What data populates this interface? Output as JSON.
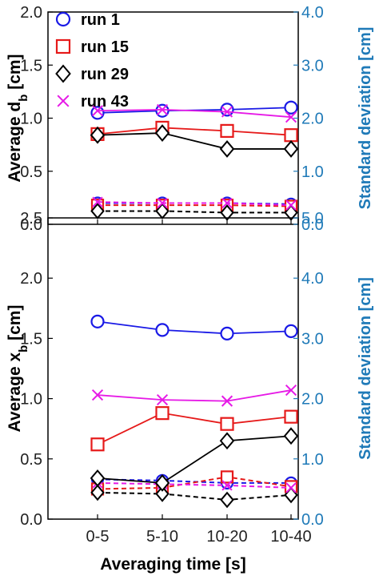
{
  "colors": {
    "run1": "#1a1ae6",
    "run15": "#e61a1a",
    "run29": "#000000",
    "run43": "#e61ae6",
    "right_axis": "#1f7ab8"
  },
  "chart_data": [
    {
      "type": "line",
      "panel": "top",
      "categories": [
        "0-5",
        "5-10",
        "10-20",
        "10-40"
      ],
      "xlabel": "",
      "ylabel": "Average d",
      "ylabel_sub": "b",
      "ylabel_unit": " [cm]",
      "ylim": [
        0,
        2.0
      ],
      "yticks": [
        "0.0",
        "0.5",
        "1.0",
        "1.5",
        "2.0"
      ],
      "ytick_values": [
        0,
        0.5,
        1.0,
        1.5,
        2.0
      ],
      "y2label": "Standard deviation [cm]",
      "y2lim": [
        0,
        4.0
      ],
      "y2ticks": [
        "0.0",
        "1.0",
        "2.0",
        "3.0",
        "4.0"
      ],
      "y2tick_values": [
        0,
        1.0,
        2.0,
        3.0,
        4.0
      ],
      "legend": "top-left",
      "series": [
        {
          "name": "run 1",
          "key": "run1",
          "marker": "circle",
          "values": [
            1.05,
            1.07,
            1.08,
            1.1
          ]
        },
        {
          "name": "run 15",
          "key": "run15",
          "marker": "square",
          "values": [
            0.85,
            0.91,
            0.88,
            0.84
          ]
        },
        {
          "name": "run 29",
          "key": "run29",
          "marker": "diamond",
          "values": [
            0.84,
            0.86,
            0.71,
            0.71
          ]
        },
        {
          "name": "run 43",
          "key": "run43",
          "marker": "x",
          "values": [
            1.07,
            1.08,
            1.06,
            1.01
          ]
        }
      ],
      "std_series": [
        {
          "key": "run1",
          "marker": "circle",
          "values": [
            0.4,
            0.4,
            0.4,
            0.38
          ]
        },
        {
          "key": "run15",
          "marker": "square",
          "values": [
            0.36,
            0.36,
            0.36,
            0.34
          ]
        },
        {
          "key": "run29",
          "marker": "diamond",
          "values": [
            0.25,
            0.25,
            0.22,
            0.22
          ]
        },
        {
          "key": "run43",
          "marker": "x",
          "values": [
            0.42,
            0.4,
            0.4,
            0.36
          ]
        }
      ]
    },
    {
      "type": "line",
      "panel": "bottom",
      "categories": [
        "0-5",
        "5-10",
        "10-20",
        "10-40"
      ],
      "xlabel": "Averaging time [s]",
      "ylabel": "Average x",
      "ylabel_sub": "b",
      "ylabel_unit": " [cm]",
      "ylim": [
        0,
        2.5
      ],
      "yticks": [
        "0.0",
        "0.5",
        "1.0",
        "1.5",
        "2.0",
        "2.5"
      ],
      "ytick_values": [
        0,
        0.5,
        1.0,
        1.5,
        2.0,
        2.5
      ],
      "y2label": "Standard deviation [cm]",
      "y2lim": [
        0,
        5.0
      ],
      "y2ticks": [
        "0.0",
        "1.0",
        "2.0",
        "3.0",
        "4.0",
        "5.0"
      ],
      "y2tick_values": [
        0,
        1.0,
        2.0,
        3.0,
        4.0,
        5.0
      ],
      "series": [
        {
          "name": "run 1",
          "key": "run1",
          "marker": "circle",
          "values": [
            1.64,
            1.57,
            1.54,
            1.56
          ]
        },
        {
          "name": "run 15",
          "key": "run15",
          "marker": "square",
          "values": [
            0.62,
            0.88,
            0.79,
            0.85
          ]
        },
        {
          "name": "run 29",
          "key": "run29",
          "marker": "diamond",
          "values": [
            0.34,
            0.3,
            0.65,
            0.69
          ]
        },
        {
          "name": "run 43",
          "key": "run43",
          "marker": "x",
          "values": [
            1.03,
            0.99,
            0.98,
            1.07
          ]
        }
      ],
      "std_series": [
        {
          "key": "run1",
          "marker": "circle",
          "values": [
            0.66,
            0.64,
            0.6,
            0.6
          ]
        },
        {
          "key": "run15",
          "marker": "square",
          "values": [
            0.5,
            0.52,
            0.7,
            0.54
          ]
        },
        {
          "key": "run29",
          "marker": "diamond",
          "values": [
            0.44,
            0.42,
            0.32,
            0.4
          ]
        },
        {
          "key": "run43",
          "marker": "x",
          "values": [
            0.6,
            0.58,
            0.56,
            0.52
          ]
        }
      ]
    }
  ]
}
